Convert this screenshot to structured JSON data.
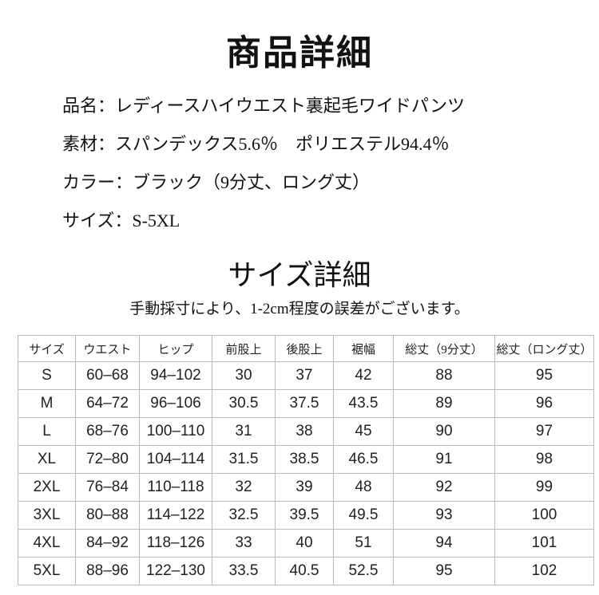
{
  "header": {
    "title": "商品詳細"
  },
  "specs": [
    "品名：レディースハイウエスト裏起毛ワイドパンツ",
    "素材：スパンデックス5.6％　ポリエステル94.4％",
    "カラー：ブラック（9分丈、ロング丈）",
    "サイズ：S-5XL"
  ],
  "size_section": {
    "title": "サイズ詳細",
    "note": "手動採寸により、1-2cm程度の誤差がございます。"
  },
  "table": {
    "columns": [
      "サイズ",
      "ウエスト",
      "ヒップ",
      "前股上",
      "後股上",
      "裾幅",
      "総丈（9分丈）",
      "総丈（ロング丈）"
    ],
    "rows": [
      [
        "S",
        "60–68",
        "94–102",
        "30",
        "37",
        "42",
        "88",
        "95"
      ],
      [
        "M",
        "64–72",
        "96–106",
        "30.5",
        "37.5",
        "43.5",
        "89",
        "96"
      ],
      [
        "L",
        "68–76",
        "100–110",
        "31",
        "38",
        "45",
        "90",
        "97"
      ],
      [
        "XL",
        "72–80",
        "104–114",
        "31.5",
        "38.5",
        "46.5",
        "91",
        "98"
      ],
      [
        "2XL",
        "76–84",
        "110–118",
        "32",
        "39",
        "48",
        "92",
        "99"
      ],
      [
        "3XL",
        "80–88",
        "114–122",
        "32.5",
        "39.5",
        "49.5",
        "93",
        "100"
      ],
      [
        "4XL",
        "84–92",
        "118–126",
        "33",
        "40",
        "51",
        "94",
        "101"
      ],
      [
        "5XL",
        "88–96",
        "122–130",
        "33.5",
        "40.5",
        "52.5",
        "95",
        "102"
      ]
    ]
  }
}
